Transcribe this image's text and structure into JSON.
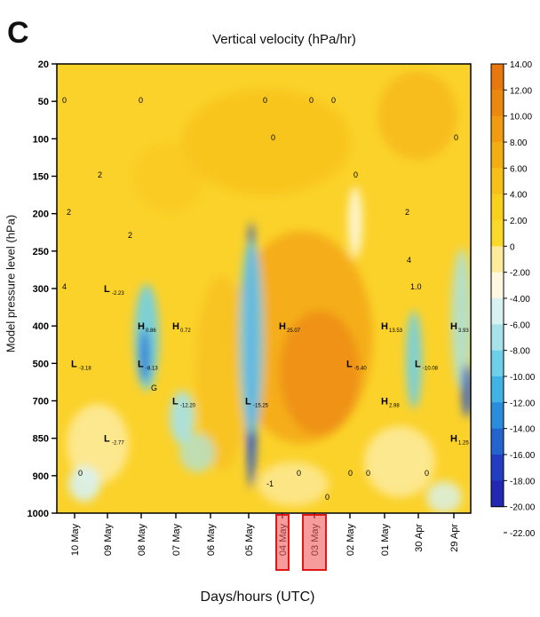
{
  "panel_letter": "C",
  "chart_data": {
    "type": "heatmap",
    "title": "Vertical velocity (hPa/hr)",
    "xlabel": "Days/hours (UTC)",
    "ylabel": "Model pressure level (hPa)",
    "x_categories": [
      "10 May",
      "09 May",
      "08 May",
      "07 May",
      "06 May",
      "05 May",
      "04 May",
      "03 May",
      "02 May",
      "01 May",
      "30 Apr",
      "29 Apr"
    ],
    "highlighted_x": [
      "04 May",
      "03 May"
    ],
    "y_ticks": [
      20,
      50,
      100,
      150,
      200,
      250,
      300,
      400,
      500,
      700,
      850,
      900,
      1000
    ],
    "y_range": [
      20,
      1000
    ],
    "y_inverted": true,
    "colorbar": {
      "ticks": [
        "14.00",
        "12.00",
        "10.00",
        "8.00",
        "6.00",
        "4.00",
        "2.00",
        "0",
        "-2.00",
        "-4.00",
        "-6.00",
        "-8.00",
        "-10.00",
        "-12.00",
        "-14.00",
        "-16.00",
        "-18.00",
        "-20.00",
        "-22.00"
      ],
      "colors": [
        "#e8780e",
        "#ec880e",
        "#f09b10",
        "#f4ae14",
        "#f7c019",
        "#f9cf1e",
        "#fbd928",
        "#fdea9a",
        "#fef8e0",
        "#d8f2f2",
        "#a6e2ea",
        "#6ed0e8",
        "#40b2e4",
        "#2a8cdc",
        "#2464cf",
        "#213ec3",
        "#2228b2"
      ]
    },
    "annotations": [
      {
        "label": "L",
        "sub": "-3.18",
        "x": "10 May",
        "y": 500
      },
      {
        "label": "L",
        "sub": "-2.77",
        "x": "09 May",
        "y": 850
      },
      {
        "label": "L",
        "sub": "-2.23",
        "x": "09 May",
        "y": 300
      },
      {
        "label": "H",
        "sub": "0.86",
        "x": "08 May",
        "y": 400
      },
      {
        "label": "H",
        "sub": "0.72",
        "x": "07 May",
        "y": 400
      },
      {
        "label": "L",
        "sub": "-8.13",
        "x": "08 May",
        "y": 500
      },
      {
        "label": "L",
        "sub": "-12.20",
        "x": "07 May",
        "y": 700
      },
      {
        "label": "L",
        "sub": "-15.25",
        "x": "05 May",
        "y": 700
      },
      {
        "label": "H",
        "sub": "25.07",
        "x": "04 May",
        "y": 400
      },
      {
        "label": "L",
        "sub": "-5.40",
        "x": "02 May",
        "y": 500
      },
      {
        "label": "H",
        "sub": "2.98",
        "x": "01 May",
        "y": 700
      },
      {
        "label": "H",
        "sub": "13.53",
        "x": "01 May",
        "y": 400
      },
      {
        "label": "L",
        "sub": "-10.08",
        "x": "30 Apr",
        "y": 500
      },
      {
        "label": "H",
        "sub": "3.93",
        "x": "29 Apr",
        "y": 400
      },
      {
        "label": "H",
        "sub": "1.25",
        "x": "29 Apr",
        "y": 850
      }
    ],
    "contour_labels": [
      "0",
      "0",
      "0",
      "0",
      "0",
      "0",
      "0",
      "0",
      "2",
      "2",
      "2",
      "2",
      "4",
      "4",
      "1.0",
      "G",
      "-1",
      "0",
      "0",
      "0",
      "0",
      "0",
      "0"
    ]
  }
}
